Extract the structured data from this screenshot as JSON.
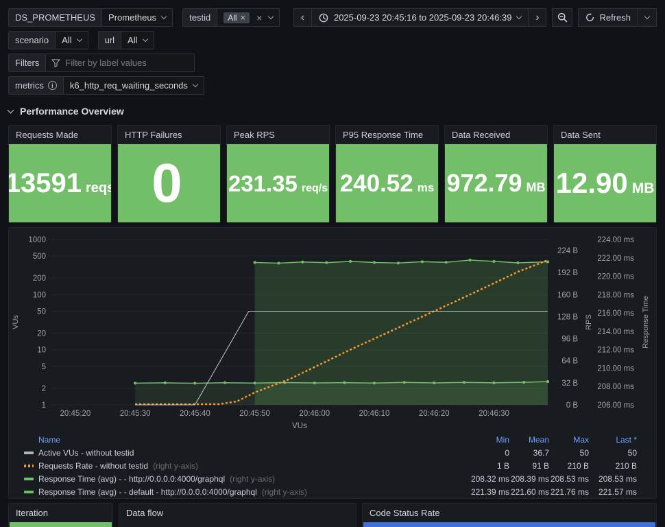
{
  "toolbar": {
    "ds_label": "DS_PROMETHEUS",
    "ds_value": "Prometheus",
    "testid_label": "testid",
    "testid_chip": "All",
    "time_range": "2025-09-23 20:45:16 to 2025-09-23 20:46:39",
    "refresh_label": "Refresh"
  },
  "variables": {
    "scenario_label": "scenario",
    "scenario_value": "All",
    "url_label": "url",
    "url_value": "All",
    "filters_label": "Filters",
    "filters_placeholder": "Filter by label values",
    "metrics_label": "metrics",
    "metrics_value": "k6_http_req_waiting_seconds"
  },
  "section": {
    "title": "Performance Overview"
  },
  "stats": [
    {
      "title": "Requests Made",
      "value": "13591",
      "unit": "reqs"
    },
    {
      "title": "HTTP Failures",
      "value": "0",
      "unit": ""
    },
    {
      "title": "Peak RPS",
      "value": "231.35",
      "unit": "req/s"
    },
    {
      "title": "P95 Response Time",
      "value": "240.52",
      "unit": "ms"
    },
    {
      "title": "Data Received",
      "value": "972.79",
      "unit": "MB"
    },
    {
      "title": "Data Sent",
      "value": "12.90",
      "unit": "MB"
    }
  ],
  "chart_data": {
    "type": "line",
    "x_range": [
      0,
      83
    ],
    "x_title": "VUs",
    "x_ticks": [
      {
        "t": 4,
        "label": "20:45:20"
      },
      {
        "t": 14,
        "label": "20:45:30"
      },
      {
        "t": 24,
        "label": "20:45:40"
      },
      {
        "t": 34,
        "label": "20:45:50"
      },
      {
        "t": 44,
        "label": "20:46:00"
      },
      {
        "t": 54,
        "label": "20:46:10"
      },
      {
        "t": 64,
        "label": "20:46:20"
      },
      {
        "t": 74,
        "label": "20:46:30"
      }
    ],
    "axes": {
      "vus": {
        "side": "left",
        "scale": "log",
        "title": "VUs",
        "min": 1,
        "max": 1000,
        "ticks": [
          1000,
          500,
          200,
          100,
          50,
          20,
          10,
          5,
          2,
          1
        ]
      },
      "rps": {
        "side": "right",
        "scale": "linear",
        "title": "RPS",
        "min": 0,
        "max": 224,
        "tick_values": [
          224,
          192,
          160,
          128,
          96,
          64,
          32,
          0
        ],
        "ticks": [
          "224 B",
          "192 B",
          "160 B",
          "128 B",
          "96 B",
          "64 B",
          "32 B",
          "0 B"
        ]
      },
      "rt": {
        "side": "right2",
        "scale": "linear",
        "title": "Response Time",
        "min": 206,
        "max": 224,
        "tick_values": [
          224,
          222,
          220,
          218,
          216,
          214,
          212,
          210,
          208,
          206
        ],
        "ticks": [
          "224.00 ms",
          "222.00 ms",
          "220.00 ms",
          "218.00 ms",
          "216.00 ms",
          "214.00 ms",
          "212.00 ms",
          "210.00 ms",
          "208.00 ms",
          "206.00 ms"
        ]
      }
    },
    "series": [
      {
        "name": "Active VUs - without testid",
        "axis": "vus",
        "color": "#c8c9ce",
        "width": 1,
        "points": [
          [
            14,
            1
          ],
          [
            24,
            1
          ],
          [
            33,
            50
          ],
          [
            83,
            50
          ]
        ]
      },
      {
        "name": "Requests Rate - without testid",
        "axis": "rps",
        "color": "#ff9830",
        "width": 2.5,
        "dash": [
          3,
          3
        ],
        "points": [
          [
            14,
            1
          ],
          [
            28,
            1
          ],
          [
            31,
            5
          ],
          [
            34,
            18
          ],
          [
            40,
            38
          ],
          [
            50,
            80
          ],
          [
            60,
            120
          ],
          [
            70,
            160
          ],
          [
            78,
            193
          ],
          [
            83,
            210
          ]
        ]
      },
      {
        "name": "Response Time (avg) - - http://0.0.0.0:4000/graphql",
        "axis": "rt",
        "color": "#73bf69",
        "width": 1.5,
        "fill": 0.12,
        "markers": true,
        "points": [
          [
            14,
            208.36
          ],
          [
            19,
            208.4
          ],
          [
            24,
            208.35
          ],
          [
            29,
            208.41
          ],
          [
            34,
            208.37
          ],
          [
            39,
            208.43
          ],
          [
            44,
            208.38
          ],
          [
            49,
            208.42
          ],
          [
            54,
            208.37
          ],
          [
            59,
            208.44
          ],
          [
            64,
            208.39
          ],
          [
            69,
            208.45
          ],
          [
            74,
            208.4
          ],
          [
            79,
            208.46
          ],
          [
            83,
            208.53
          ]
        ]
      },
      {
        "name": "Response Time (avg) - - default - http://0.0.0.0:4000/graphql",
        "axis": "rt",
        "color": "#6cc25f",
        "width": 1.5,
        "fill": 0.2,
        "markers": true,
        "points": [
          [
            34,
            221.5
          ],
          [
            38,
            221.42
          ],
          [
            42,
            221.56
          ],
          [
            46,
            221.48
          ],
          [
            50,
            221.62
          ],
          [
            54,
            221.5
          ],
          [
            58,
            221.44
          ],
          [
            62,
            221.58
          ],
          [
            66,
            221.52
          ],
          [
            70,
            221.76
          ],
          [
            74,
            221.62
          ],
          [
            78,
            221.46
          ],
          [
            83,
            221.57
          ]
        ]
      }
    ]
  },
  "legend": {
    "columns": [
      "Name",
      "Min",
      "Mean",
      "Max",
      "Last *"
    ],
    "rows": [
      {
        "name": "Active VUs - without testid",
        "suffix": "",
        "color": "#b4b5bb",
        "dashed": false,
        "min": "0",
        "mean": "36.7",
        "max": "50",
        "last": "50"
      },
      {
        "name": "Requests Rate - without testid",
        "suffix": "(right y-axis)",
        "color": "#ff9830",
        "dashed": true,
        "min": "1 B",
        "mean": "91 B",
        "max": "210 B",
        "last": "210 B"
      },
      {
        "name": "Response Time (avg) - - http://0.0.0.0:4000/graphql",
        "suffix": "(right y-axis)",
        "color": "#73bf69",
        "dashed": false,
        "min": "208.32 ms",
        "mean": "208.39 ms",
        "max": "208.53 ms",
        "last": "208.53 ms"
      },
      {
        "name": "Response Time (avg) - - default - http://0.0.0.0:4000/graphql",
        "suffix": "(right y-axis)",
        "color": "#6cc25f",
        "dashed": false,
        "min": "221.39 ms",
        "mean": "221.60 ms",
        "max": "221.76 ms",
        "last": "221.57 ms"
      }
    ]
  },
  "bottom_panels": {
    "iteration": "Iteration",
    "data_flow": "Data flow",
    "code_status": "Code Status Rate"
  },
  "colors": {
    "stat_bg": "#73bf69",
    "iteration_bar": "#73bf69",
    "code_status_bar": "#3d71d9",
    "link": "#6e9fff",
    "orange": "#ff9830"
  }
}
